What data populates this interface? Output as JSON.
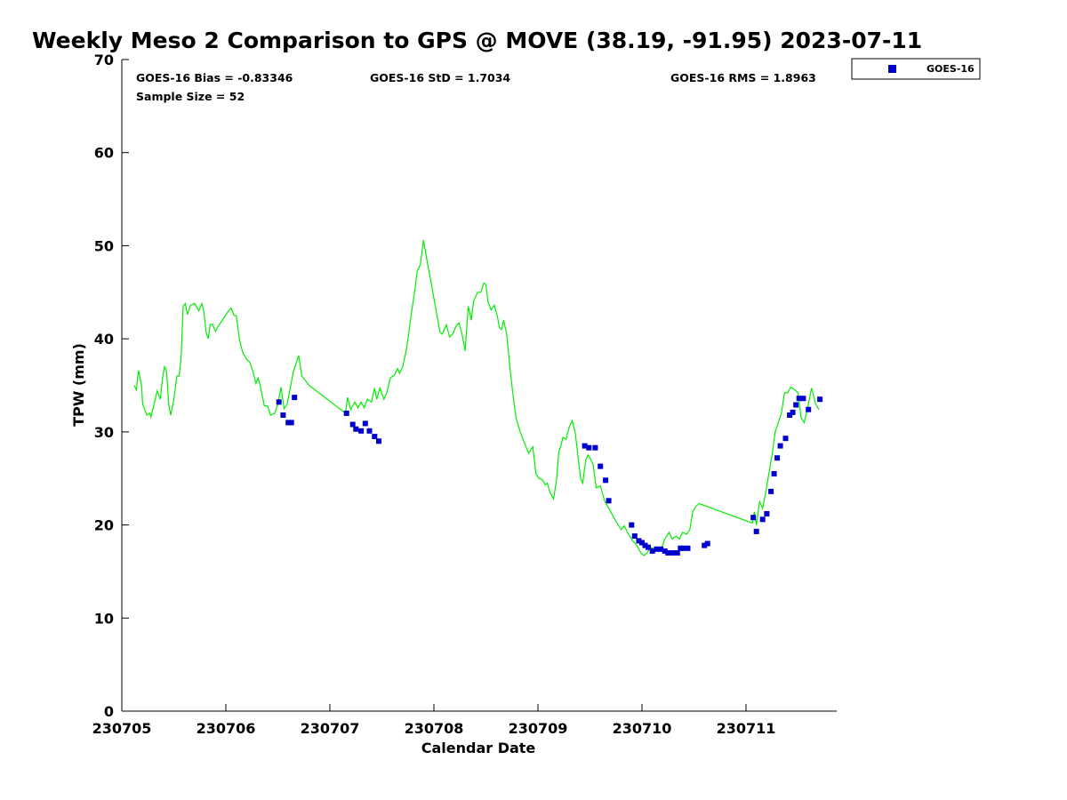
{
  "chart_data": {
    "type": "scatter",
    "title": "Weekly Meso 2 Comparison to GPS @ MOVE (38.19, -91.95) 2023-07-11",
    "xlabel": "Calendar Date",
    "ylabel": "TPW (mm)",
    "xlim": [
      0,
      6.9
    ],
    "ylim": [
      0,
      70
    ],
    "x_ticks": [
      {
        "x": 0,
        "label": "230705"
      },
      {
        "x": 1,
        "label": "230706"
      },
      {
        "x": 2,
        "label": "230707"
      },
      {
        "x": 3,
        "label": "230708"
      },
      {
        "x": 4,
        "label": "230709"
      },
      {
        "x": 5,
        "label": "230710"
      },
      {
        "x": 6,
        "label": "230711"
      }
    ],
    "y_ticks": [
      0,
      10,
      20,
      30,
      40,
      50,
      60,
      70
    ],
    "grid": false,
    "legend": {
      "position": "top-right",
      "entries": [
        {
          "name": "GOES-16",
          "color": "#0000cc",
          "marker": "square"
        }
      ]
    },
    "stats": {
      "bias": "GOES-16 Bias = -0.83346",
      "std": "GOES-16 StD = 1.7034",
      "rms": "GOES-16 RMS = 1.8963",
      "sample_size": "Sample Size = 52"
    },
    "series": [
      {
        "kind": "line",
        "color": "#00ee00",
        "points": [
          [
            0.12,
            35
          ],
          [
            0.14,
            34.5
          ],
          [
            0.16,
            36.6
          ],
          [
            0.19,
            35
          ],
          [
            0.2,
            33
          ],
          [
            0.24,
            31.8
          ],
          [
            0.27,
            32
          ],
          [
            0.28,
            31.6
          ],
          [
            0.3,
            32.5
          ],
          [
            0.34,
            34.4
          ],
          [
            0.37,
            33.5
          ],
          [
            0.39,
            35.6
          ],
          [
            0.41,
            37
          ],
          [
            0.43,
            36.5
          ],
          [
            0.45,
            33
          ],
          [
            0.47,
            31.8
          ],
          [
            0.5,
            33.5
          ],
          [
            0.53,
            36
          ],
          [
            0.55,
            36
          ],
          [
            0.57,
            38
          ],
          [
            0.59,
            43.5
          ],
          [
            0.61,
            43.8
          ],
          [
            0.63,
            42.6
          ],
          [
            0.66,
            43.6
          ],
          [
            0.7,
            43.8
          ],
          [
            0.74,
            43
          ],
          [
            0.77,
            43.8
          ],
          [
            0.79,
            42.8
          ],
          [
            0.81,
            40.7
          ],
          [
            0.83,
            40
          ],
          [
            0.85,
            41.5
          ],
          [
            0.87,
            41.6
          ],
          [
            0.9,
            40.8
          ],
          [
            0.93,
            41.4
          ],
          [
            1.02,
            42.9
          ],
          [
            1.05,
            43.3
          ],
          [
            1.08,
            42.5
          ],
          [
            1.1,
            42.5
          ],
          [
            1.13,
            40
          ],
          [
            1.16,
            38.6
          ],
          [
            1.2,
            37.8
          ],
          [
            1.23,
            37.5
          ],
          [
            1.26,
            36.5
          ],
          [
            1.29,
            35.2
          ],
          [
            1.31,
            35.8
          ],
          [
            1.33,
            35
          ],
          [
            1.37,
            32.8
          ],
          [
            1.4,
            32.8
          ],
          [
            1.43,
            31.8
          ],
          [
            1.47,
            32
          ],
          [
            1.5,
            33
          ],
          [
            1.53,
            34.8
          ],
          [
            1.56,
            32.5
          ],
          [
            1.59,
            33
          ],
          [
            1.65,
            36.5
          ],
          [
            1.7,
            38.2
          ],
          [
            1.73,
            36
          ],
          [
            1.8,
            35
          ],
          [
            2.15,
            32
          ],
          [
            2.17,
            33.7
          ],
          [
            2.2,
            32.4
          ],
          [
            2.24,
            33.2
          ],
          [
            2.27,
            32.6
          ],
          [
            2.3,
            33.2
          ],
          [
            2.33,
            32.6
          ],
          [
            2.36,
            33.5
          ],
          [
            2.4,
            33.2
          ],
          [
            2.43,
            34.7
          ],
          [
            2.45,
            33.5
          ],
          [
            2.48,
            34.7
          ],
          [
            2.52,
            33.5
          ],
          [
            2.55,
            34.3
          ],
          [
            2.58,
            35.8
          ],
          [
            2.62,
            36.1
          ],
          [
            2.65,
            36.8
          ],
          [
            2.67,
            36.3
          ],
          [
            2.7,
            37
          ],
          [
            2.73,
            38.5
          ],
          [
            2.76,
            40.7
          ],
          [
            2.78,
            42.5
          ],
          [
            2.8,
            44
          ],
          [
            2.82,
            45.5
          ],
          [
            2.84,
            47.3
          ],
          [
            2.87,
            48
          ],
          [
            2.9,
            50.6
          ],
          [
            2.94,
            48
          ],
          [
            2.98,
            45.6
          ],
          [
            3.02,
            43.1
          ],
          [
            3.06,
            40.7
          ],
          [
            3.08,
            40.5
          ],
          [
            3.12,
            41.5
          ],
          [
            3.15,
            40.2
          ],
          [
            3.18,
            40.5
          ],
          [
            3.21,
            41.3
          ],
          [
            3.24,
            41.7
          ],
          [
            3.27,
            40.5
          ],
          [
            3.3,
            38.7
          ],
          [
            3.33,
            43.5
          ],
          [
            3.36,
            42
          ],
          [
            3.38,
            44
          ],
          [
            3.42,
            45
          ],
          [
            3.45,
            45
          ],
          [
            3.48,
            46
          ],
          [
            3.5,
            45.8
          ],
          [
            3.52,
            44
          ],
          [
            3.55,
            43.1
          ],
          [
            3.58,
            43.6
          ],
          [
            3.61,
            42.4
          ],
          [
            3.63,
            41.2
          ],
          [
            3.65,
            41
          ],
          [
            3.67,
            42
          ],
          [
            3.7,
            40.5
          ],
          [
            3.73,
            37
          ],
          [
            3.76,
            34
          ],
          [
            3.79,
            31.5
          ],
          [
            3.83,
            30
          ],
          [
            3.87,
            28.8
          ],
          [
            3.91,
            27.7
          ],
          [
            3.95,
            28.4
          ],
          [
            3.98,
            25.5
          ],
          [
            4.01,
            25
          ],
          [
            4.04,
            24.9
          ],
          [
            4.07,
            24.3
          ],
          [
            4.09,
            24.5
          ],
          [
            4.12,
            23.4
          ],
          [
            4.15,
            22.8
          ],
          [
            4.18,
            25
          ],
          [
            4.2,
            27.8
          ],
          [
            4.22,
            28.5
          ],
          [
            4.24,
            29.4
          ],
          [
            4.27,
            29.2
          ],
          [
            4.3,
            30.5
          ],
          [
            4.33,
            31.2
          ],
          [
            4.36,
            29.8
          ],
          [
            4.38,
            27.8
          ],
          [
            4.41,
            25
          ],
          [
            4.43,
            24.5
          ],
          [
            4.46,
            27
          ],
          [
            4.48,
            27.5
          ],
          [
            4.5,
            27.2
          ],
          [
            4.53,
            26.5
          ],
          [
            4.56,
            24
          ],
          [
            4.6,
            24.2
          ],
          [
            4.64,
            22.6
          ],
          [
            4.68,
            21.8
          ],
          [
            4.72,
            21
          ],
          [
            4.76,
            20.2
          ],
          [
            4.8,
            19.5
          ],
          [
            4.83,
            19.9
          ],
          [
            4.87,
            19
          ],
          [
            4.91,
            18.3
          ],
          [
            4.95,
            17.8
          ],
          [
            4.99,
            17
          ],
          [
            5.02,
            16.7
          ],
          [
            5.05,
            17
          ],
          [
            5.08,
            17.6
          ],
          [
            5.12,
            17.4
          ],
          [
            5.16,
            17.2
          ],
          [
            5.19,
            17.6
          ],
          [
            5.22,
            18.5
          ],
          [
            5.26,
            19.2
          ],
          [
            5.29,
            18.5
          ],
          [
            5.33,
            18.8
          ],
          [
            5.36,
            18.5
          ],
          [
            5.39,
            19.2
          ],
          [
            5.43,
            19
          ],
          [
            5.46,
            19.5
          ],
          [
            5.49,
            21.5
          ],
          [
            5.52,
            22
          ],
          [
            5.55,
            22.3
          ],
          [
            6.06,
            20.2
          ],
          [
            6.08,
            21.4
          ],
          [
            6.1,
            20
          ],
          [
            6.13,
            22.5
          ],
          [
            6.16,
            21.8
          ],
          [
            6.19,
            23.5
          ],
          [
            6.22,
            25.5
          ],
          [
            6.25,
            27.5
          ],
          [
            6.28,
            30
          ],
          [
            6.31,
            31
          ],
          [
            6.34,
            32
          ],
          [
            6.37,
            34.2
          ],
          [
            6.4,
            34.2
          ],
          [
            6.43,
            34.8
          ],
          [
            6.46,
            34.6
          ],
          [
            6.5,
            34.2
          ],
          [
            6.53,
            31.5
          ],
          [
            6.56,
            31
          ],
          [
            6.6,
            33
          ],
          [
            6.63,
            34.7
          ],
          [
            6.67,
            33
          ],
          [
            6.7,
            32.4
          ]
        ]
      },
      {
        "name": "GOES-16",
        "kind": "scatter",
        "color": "#0000cc",
        "points": [
          [
            1.51,
            33.2
          ],
          [
            1.55,
            31.8
          ],
          [
            1.6,
            31
          ],
          [
            1.63,
            31
          ],
          [
            1.66,
            33.7
          ],
          [
            2.16,
            32
          ],
          [
            2.22,
            30.8
          ],
          [
            2.25,
            30.3
          ],
          [
            2.3,
            30.1
          ],
          [
            2.34,
            30.9
          ],
          [
            2.38,
            30.1
          ],
          [
            2.43,
            29.5
          ],
          [
            2.47,
            29
          ],
          [
            4.45,
            28.5
          ],
          [
            4.49,
            28.3
          ],
          [
            4.55,
            28.3
          ],
          [
            4.6,
            26.3
          ],
          [
            4.65,
            24.8
          ],
          [
            4.68,
            22.6
          ],
          [
            4.9,
            20
          ],
          [
            4.93,
            18.8
          ],
          [
            4.97,
            18.3
          ],
          [
            5.0,
            18.1
          ],
          [
            5.03,
            17.8
          ],
          [
            5.06,
            17.6
          ],
          [
            5.1,
            17.2
          ],
          [
            5.14,
            17.4
          ],
          [
            5.18,
            17.4
          ],
          [
            5.22,
            17.2
          ],
          [
            5.25,
            17
          ],
          [
            5.28,
            17
          ],
          [
            5.31,
            17
          ],
          [
            5.34,
            17
          ],
          [
            5.37,
            17.5
          ],
          [
            5.4,
            17.5
          ],
          [
            5.44,
            17.5
          ],
          [
            5.6,
            17.8
          ],
          [
            5.63,
            18
          ],
          [
            6.07,
            20.8
          ],
          [
            6.1,
            19.3
          ],
          [
            6.16,
            20.6
          ],
          [
            6.2,
            21.2
          ],
          [
            6.24,
            23.6
          ],
          [
            6.27,
            25.5
          ],
          [
            6.3,
            27.2
          ],
          [
            6.33,
            28.5
          ],
          [
            6.38,
            29.3
          ],
          [
            6.42,
            31.8
          ],
          [
            6.45,
            32.1
          ],
          [
            6.48,
            32.9
          ],
          [
            6.51,
            33.6
          ],
          [
            6.55,
            33.6
          ],
          [
            6.6,
            32.4
          ],
          [
            6.71,
            33.5
          ]
        ]
      }
    ]
  }
}
